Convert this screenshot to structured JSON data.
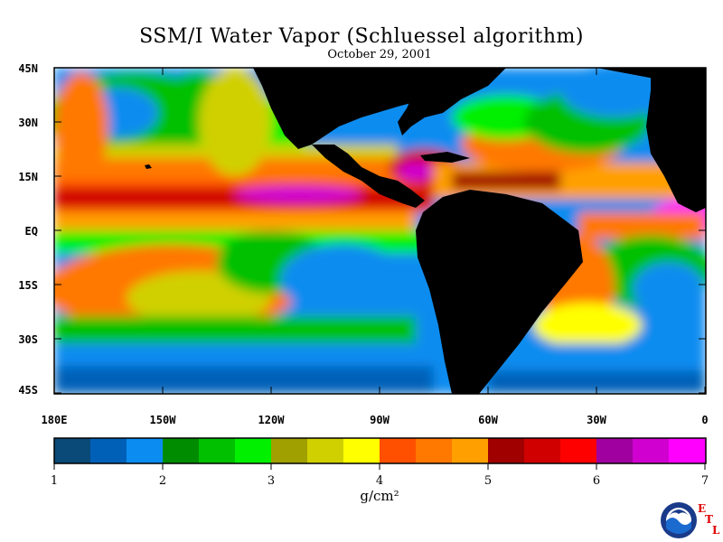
{
  "title": "SSM/I Water Vapor (Schluessel algorithm)",
  "subtitle": "October 29, 2001",
  "map": {
    "lat_labels": [
      "45N",
      "30N",
      "15N",
      "EQ",
      "15S",
      "30S",
      "45S"
    ],
    "lon_labels": [
      "180E",
      "150W",
      "120W",
      "90W",
      "60W",
      "30W",
      "0"
    ]
  },
  "colorbar": {
    "ticks": [
      "1",
      "2",
      "3",
      "4",
      "5",
      "6",
      "7"
    ],
    "units": "g/cm²",
    "colors": [
      "#0a4a78",
      "#0060b8",
      "#0a8cf0",
      "#008c00",
      "#00c000",
      "#00f000",
      "#a0a000",
      "#d0d000",
      "#ffff00",
      "#ff5000",
      "#ff7800",
      "#ffa000",
      "#a00000",
      "#d00000",
      "#ff0000",
      "#a000a0",
      "#d000d0",
      "#ff00ff"
    ]
  },
  "logo": {
    "name": "NOAA",
    "letters": [
      "E",
      "T",
      "L"
    ]
  }
}
